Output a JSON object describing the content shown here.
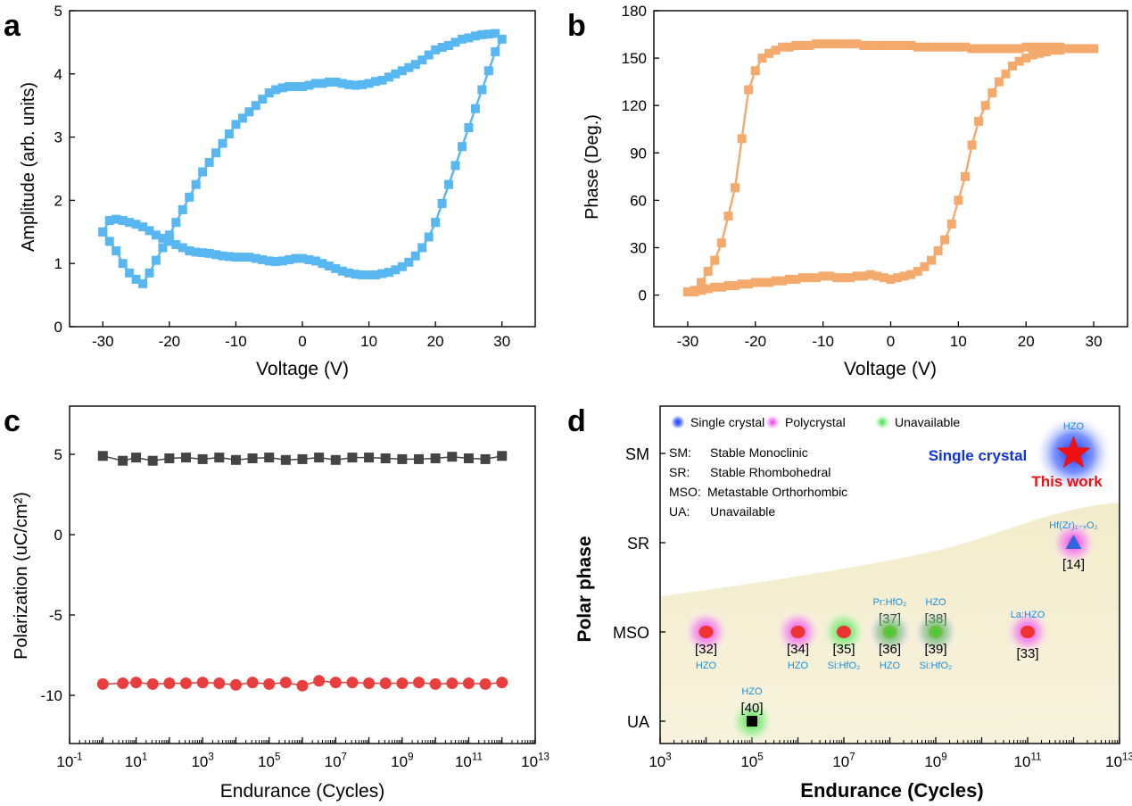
{
  "chart_data": [
    {
      "panel": "a",
      "type": "line",
      "xlabel": "Voltage (V)",
      "ylabel": "Amplitude (arb. units)",
      "xlim": [
        -35,
        35
      ],
      "ylim": [
        0,
        5
      ],
      "xticks": [
        -30,
        -20,
        -10,
        0,
        10,
        20,
        30
      ],
      "yticks": [
        0,
        1,
        2,
        3,
        4,
        5
      ],
      "marker": "square",
      "color": "#58b7f0",
      "series": [
        {
          "x": [
            -30,
            -29,
            -28,
            -27,
            -26,
            -25,
            -24,
            -23,
            -22,
            -21,
            -20,
            -19,
            -18,
            -17,
            -16,
            -15,
            -14,
            -13,
            -12,
            -11,
            -10,
            -9,
            -8,
            -7,
            -6,
            -5,
            -4,
            -3,
            -2,
            -1,
            0,
            1,
            2,
            3,
            4,
            5,
            6,
            7,
            8,
            9,
            10,
            11,
            12,
            13,
            14,
            15,
            16,
            17,
            18,
            19,
            20,
            21,
            22,
            23,
            24,
            25,
            26,
            27,
            28,
            29,
            30,
            29,
            28,
            27,
            26,
            25,
            24,
            23,
            22,
            21,
            20,
            19,
            18,
            17,
            16,
            15,
            14,
            13,
            12,
            11,
            10,
            9,
            8,
            7,
            6,
            5,
            4,
            3,
            2,
            1,
            0,
            -1,
            -2,
            -3,
            -4,
            -5,
            -6,
            -7,
            -8,
            -9,
            -10,
            -11,
            -12,
            -13,
            -14,
            -15,
            -16,
            -17,
            -18,
            -19,
            -20,
            -21,
            -22,
            -23,
            -24,
            -25,
            -26,
            -27,
            -28,
            -29,
            -30
          ],
          "y": [
            1.5,
            1.35,
            1.2,
            1.0,
            0.85,
            0.75,
            0.68,
            0.85,
            1.05,
            1.25,
            1.45,
            1.65,
            1.85,
            2.05,
            2.25,
            2.45,
            2.6,
            2.75,
            2.9,
            3.05,
            3.2,
            3.3,
            3.4,
            3.5,
            3.6,
            3.7,
            3.75,
            3.78,
            3.8,
            3.8,
            3.8,
            3.82,
            3.85,
            3.85,
            3.87,
            3.87,
            3.85,
            3.83,
            3.82,
            3.83,
            3.85,
            3.88,
            3.9,
            3.95,
            4.0,
            4.05,
            4.1,
            4.15,
            4.22,
            4.3,
            4.38,
            4.42,
            4.45,
            4.5,
            4.55,
            4.57,
            4.6,
            4.62,
            4.63,
            4.64,
            4.55,
            4.35,
            4.05,
            3.75,
            3.45,
            3.15,
            2.85,
            2.55,
            2.25,
            1.95,
            1.65,
            1.42,
            1.25,
            1.12,
            1.02,
            0.95,
            0.9,
            0.86,
            0.84,
            0.82,
            0.82,
            0.82,
            0.83,
            0.85,
            0.88,
            0.92,
            0.96,
            1.0,
            1.04,
            1.06,
            1.08,
            1.08,
            1.06,
            1.04,
            1.03,
            1.04,
            1.06,
            1.08,
            1.1,
            1.1,
            1.1,
            1.11,
            1.12,
            1.14,
            1.16,
            1.17,
            1.18,
            1.2,
            1.25,
            1.3,
            1.35,
            1.4,
            1.45,
            1.52,
            1.58,
            1.62,
            1.65,
            1.68,
            1.7,
            1.68,
            1.5
          ]
        }
      ]
    },
    {
      "panel": "b",
      "type": "line",
      "xlabel": "Voltage (V)",
      "ylabel": "Phase (Deg.)",
      "xlim": [
        -35,
        35
      ],
      "ylim": [
        -20,
        180
      ],
      "xticks": [
        -30,
        -20,
        -10,
        0,
        10,
        20,
        30
      ],
      "yticks": [
        0,
        30,
        60,
        90,
        120,
        150,
        180
      ],
      "marker": "square",
      "color": "#f4aa6c",
      "series": [
        {
          "x": [
            -30,
            -29,
            -28,
            -27,
            -26,
            -25,
            -24,
            -23,
            -22,
            -21,
            -20,
            -19,
            -18,
            -17,
            -16,
            -15,
            -14,
            -13,
            -12,
            -11,
            -10,
            -9,
            -8,
            -7,
            -6,
            -5,
            -4,
            -3,
            -2,
            -1,
            0,
            1,
            2,
            3,
            4,
            5,
            6,
            7,
            8,
            9,
            10,
            11,
            12,
            13,
            14,
            15,
            16,
            17,
            18,
            19,
            20,
            21,
            22,
            23,
            24,
            25,
            26,
            27,
            28,
            29,
            30,
            29,
            28,
            27,
            26,
            25,
            24,
            23,
            22,
            21,
            20,
            19,
            18,
            17,
            16,
            15,
            14,
            13,
            12,
            11,
            10,
            9,
            8,
            7,
            6,
            5,
            4,
            3,
            2,
            1,
            0,
            -1,
            -2,
            -3,
            -4,
            -5,
            -6,
            -7,
            -8,
            -9,
            -10,
            -11,
            -12,
            -13,
            -14,
            -15,
            -16,
            -17,
            -18,
            -19,
            -20,
            -21,
            -22,
            -23,
            -24,
            -25,
            -26,
            -27,
            -28,
            -29,
            -30
          ],
          "y": [
            2,
            3,
            8,
            15,
            22,
            33,
            50,
            68,
            99,
            130,
            142,
            150,
            153,
            155,
            157,
            157,
            158,
            158,
            158,
            159,
            159,
            159,
            159,
            159,
            159,
            159,
            158,
            158,
            158,
            158,
            158,
            158,
            158,
            158,
            157,
            157,
            157,
            157,
            157,
            157,
            157,
            157,
            156,
            156,
            156,
            156,
            156,
            156,
            156,
            156,
            157,
            157,
            157,
            157,
            157,
            157,
            156,
            156,
            156,
            156,
            156,
            156,
            156,
            156,
            156,
            155,
            155,
            154,
            153,
            152,
            150,
            148,
            145,
            140,
            135,
            128,
            120,
            110,
            95,
            75,
            60,
            45,
            35,
            28,
            22,
            18,
            15,
            13,
            12,
            11,
            10,
            11,
            12,
            13,
            12,
            12,
            11,
            11,
            11,
            12,
            12,
            11,
            11,
            11,
            10,
            10,
            9,
            9,
            8,
            8,
            8,
            7,
            7,
            6,
            6,
            5,
            5,
            4,
            3,
            2,
            2
          ]
        }
      ]
    },
    {
      "panel": "c",
      "type": "scatter",
      "xlabel": "Endurance (Cycles)",
      "ylabel": "Polarization (uC/cm²)",
      "xscale": "log",
      "xlim_exp": [
        -1,
        13
      ],
      "ylim": [
        -13,
        8
      ],
      "xticks_exp": [
        -1,
        1,
        3,
        5,
        7,
        9,
        11,
        13
      ],
      "yticks": [
        -10,
        -5,
        0,
        5
      ],
      "series": [
        {
          "marker": "square",
          "color": "#444444",
          "x_exp": [
            0,
            0.6,
            1,
            1.5,
            2,
            2.5,
            3,
            3.5,
            4,
            4.5,
            5,
            5.5,
            6,
            6.5,
            7,
            7.5,
            8,
            8.5,
            9,
            9.5,
            10,
            10.5,
            11,
            11.5,
            12
          ],
          "y": [
            4.9,
            4.6,
            4.8,
            4.6,
            4.75,
            4.8,
            4.7,
            4.8,
            4.65,
            4.75,
            4.8,
            4.65,
            4.7,
            4.8,
            4.65,
            4.8,
            4.8,
            4.75,
            4.7,
            4.7,
            4.75,
            4.85,
            4.75,
            4.7,
            4.9
          ]
        },
        {
          "marker": "circle",
          "color": "#e83e3e",
          "x_exp": [
            0,
            0.6,
            1,
            1.5,
            2,
            2.5,
            3,
            3.5,
            4,
            4.5,
            5,
            5.5,
            6,
            6.5,
            7,
            7.5,
            8,
            8.5,
            9,
            9.5,
            10,
            10.5,
            11,
            11.5,
            12
          ],
          "y": [
            -9.3,
            -9.25,
            -9.2,
            -9.3,
            -9.25,
            -9.25,
            -9.2,
            -9.25,
            -9.35,
            -9.2,
            -9.3,
            -9.2,
            -9.4,
            -9.1,
            -9.2,
            -9.2,
            -9.25,
            -9.25,
            -9.25,
            -9.2,
            -9.3,
            -9.25,
            -9.25,
            -9.3,
            -9.2
          ]
        }
      ]
    },
    {
      "panel": "d",
      "type": "scatter",
      "xlabel": "Endurance (Cycles)",
      "ylabel": "Polar phase",
      "xscale": "log",
      "xlim_exp": [
        3,
        13
      ],
      "xticks_exp": [
        3,
        5,
        7,
        9,
        11,
        13
      ],
      "categories": [
        "UA",
        "MSO",
        "SR",
        "SM"
      ],
      "legend": [
        {
          "label": "Single crystal",
          "color": "#2244ee"
        },
        {
          "label": "Polycrystal",
          "color": "#ee22ee"
        },
        {
          "label": "Unavailable",
          "color": "#33dd33"
        }
      ],
      "abbreviations": [
        {
          "abbr": "SM:",
          "text": "Stable Monoclinic"
        },
        {
          "abbr": "SR:",
          "text": "Stable Rhombohedral"
        },
        {
          "abbr": "MSO:",
          "text": "Metastable Orthorhombic"
        },
        {
          "abbr": "UA:",
          "text": "Unavailable"
        }
      ],
      "annotations": {
        "single_crystal": "Single crystal",
        "this_work": "This work"
      },
      "points": [
        {
          "x_exp": 4,
          "phase": "MSO",
          "ref": "[32]",
          "material": "HZO",
          "halo": "#ee22ee",
          "marker": "circle",
          "color": "#ee3333",
          "label_pos": "below"
        },
        {
          "x_exp": 6,
          "phase": "MSO",
          "ref": "[34]",
          "material": "HZO",
          "halo": "#ee22ee",
          "marker": "circle",
          "color": "#ee3333",
          "label_pos": "below"
        },
        {
          "x_exp": 7,
          "phase": "MSO",
          "ref": "[35]",
          "material": "Si:HfO₂",
          "halo": "#33dd33",
          "marker": "circle",
          "color": "#ee3333",
          "label_pos": "below"
        },
        {
          "x_exp": 8,
          "phase": "MSO",
          "ref": "[37]",
          "material": "Pr:HfO₂",
          "halo": "#ee22ee",
          "marker": "circle",
          "color": "#ee3333",
          "label_pos": "above"
        },
        {
          "x_exp": 8,
          "phase": "MSO",
          "ref": "[36]",
          "material": "HZO",
          "halo": "#33dd33",
          "marker": "none",
          "color": "#ee3333",
          "label_pos": "below"
        },
        {
          "x_exp": 9,
          "phase": "MSO",
          "ref": "[38]",
          "material": "HZO",
          "halo": "#ee22ee",
          "marker": "circle",
          "color": "#ee3333",
          "label_pos": "above"
        },
        {
          "x_exp": 9,
          "phase": "MSO",
          "ref": "[39]",
          "material": "Si:HfO₂",
          "halo": "#33dd33",
          "marker": "none",
          "color": "#ee3333",
          "label_pos": "below"
        },
        {
          "x_exp": 11,
          "phase": "MSO",
          "ref": "[33]",
          "material": "La:HZO",
          "halo": "#ee22ee",
          "marker": "circle",
          "color": "#ee3333",
          "label_pos": "mixed"
        },
        {
          "x_exp": 5,
          "phase": "UA",
          "ref": "[40]",
          "material": "HZO",
          "halo": "#33dd33",
          "marker": "square",
          "color": "#000000",
          "label_pos": "above"
        },
        {
          "x_exp": 12,
          "phase": "SR",
          "ref": "[14]",
          "material": "Hf(Zr)₁₋ₓO₂",
          "halo": "#ee22ee",
          "marker": "triangle",
          "color": "#3366dd",
          "label_pos": "mixed"
        },
        {
          "x_exp": 12,
          "phase": "SM",
          "ref": "",
          "material": "HZO",
          "halo": "#2244ee",
          "marker": "star",
          "color": "#ee1111",
          "label_pos": "above"
        }
      ]
    }
  ],
  "panel_labels": [
    "a",
    "b",
    "c",
    "d"
  ]
}
